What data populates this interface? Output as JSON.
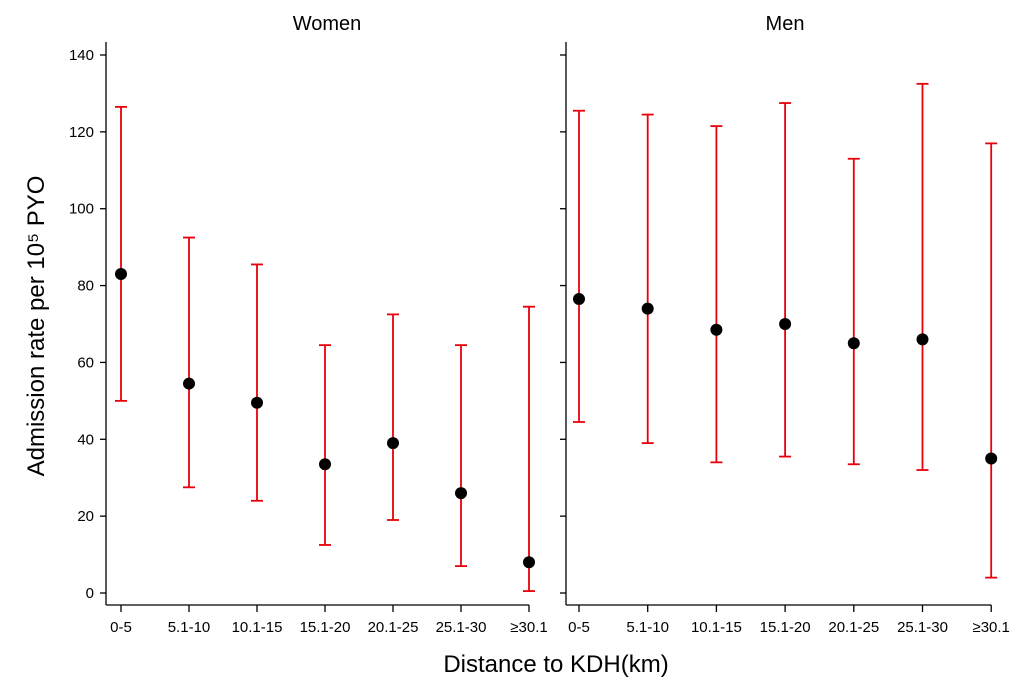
{
  "chart_data": {
    "type": "scatter",
    "subtype": "point-with-error-bars",
    "xlabel": "Distance to KDH(km)",
    "ylabel": "Admission rate per 10⁵ PYO",
    "ylim": [
      0,
      140
    ],
    "yticks": [
      0,
      20,
      40,
      60,
      80,
      100,
      120,
      140
    ],
    "categories": [
      "0-5",
      "5.1-10",
      "10.1-15",
      "15.1-20",
      "20.1-25",
      "25.1-30",
      "≥30.1"
    ],
    "grid": false,
    "colors": {
      "point": "#000000",
      "error_bar": "#e8000b"
    },
    "panels": [
      {
        "title": "Women",
        "values": [
          83,
          54.5,
          49.5,
          33.5,
          39,
          26,
          8
        ],
        "lower": [
          50,
          27.5,
          24,
          12.5,
          19,
          7,
          0.5
        ],
        "upper": [
          126.5,
          92.5,
          85.5,
          64.5,
          72.5,
          64.5,
          74.5
        ]
      },
      {
        "title": "Men",
        "values": [
          76.5,
          74,
          68.5,
          70,
          65,
          66,
          35
        ],
        "lower": [
          44.5,
          39,
          34,
          35.5,
          33.5,
          32,
          4
        ],
        "upper": [
          125.5,
          124.5,
          121.5,
          127.5,
          113,
          132.5,
          117
        ]
      }
    ]
  }
}
